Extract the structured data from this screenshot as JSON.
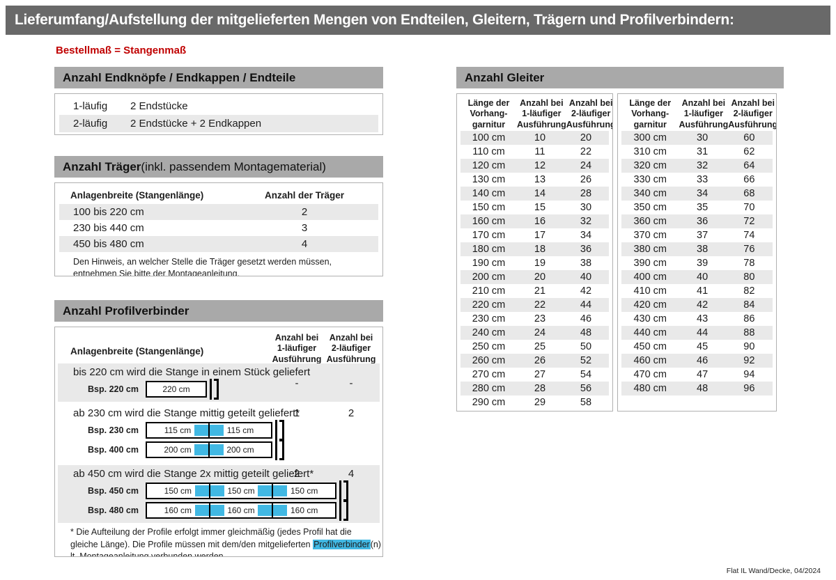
{
  "page": {
    "title": "Lieferumfang/Aufstellung der mitgelieferten Mengen von Endteilen, Gleitern, Trägern und Profilverbindern:",
    "subtitle": "Bestellmaß = Stangenmaß",
    "footer": "Flat IL Wand/Decke, 04/2024"
  },
  "colors": {
    "header_bar": "#696969",
    "section_header": "#a9a9a9",
    "row_stripe": "#e9e9e9",
    "accent_red": "#c00000",
    "connector_blue": "#41b8e3"
  },
  "endteile": {
    "title": "Anzahl Endknöpfe / Endkappen / Endteile",
    "rows": [
      {
        "type": "1-läufig",
        "value": "2 Endstücke"
      },
      {
        "type": "2-läufig",
        "value": "2 Endstücke + 2 Endkappen"
      }
    ]
  },
  "traeger": {
    "title_bold": "Anzahl Träger",
    "title_rest": " (inkl. passendem Montagematerial)",
    "col_width": "Anlagenbreite (Stangenlänge)",
    "col_count": "Anzahl der Träger",
    "rows": [
      {
        "range": "100 bis 220 cm",
        "count": "2"
      },
      {
        "range": "230 bis 440 cm",
        "count": "3"
      },
      {
        "range": "450 bis 480 cm",
        "count": "4"
      }
    ],
    "note": "Den Hinweis, an welcher Stelle die Träger gesetzt werden müssen, entnehmen Sie bitte der Montageanleitung."
  },
  "profilverbinder": {
    "title": "Anzahl Profilverbinder",
    "col_width": "Anlagenbreite (Stangenlänge)",
    "col_1laeufig": "Anzahl bei\n1-läufiger\nAusführung",
    "col_2laeufig": "Anzahl bei\n2-läufiger\nAusführung",
    "blocks": [
      {
        "text": "bis 220 cm wird die Stange in einem Stück geliefert",
        "anzahl_1laeufig": "-",
        "anzahl_2laeufig": "-",
        "examples": [
          {
            "label": "Bsp. 220 cm",
            "segments": [
              "220 cm"
            ]
          }
        ]
      },
      {
        "text": "ab 230 cm wird die Stange mittig geteilt geliefert*",
        "anzahl_1laeufig": "1",
        "anzahl_2laeufig": "2",
        "examples": [
          {
            "label": "Bsp. 230 cm",
            "segments": [
              "115 cm",
              "115 cm"
            ]
          },
          {
            "label": "Bsp. 400 cm",
            "segments": [
              "200 cm",
              "200 cm"
            ]
          }
        ]
      },
      {
        "text": "ab 450 cm wird die Stange 2x mittig geteilt geliefert*",
        "anzahl_1laeufig": "2",
        "anzahl_2laeufig": "4",
        "examples": [
          {
            "label": "Bsp. 450 cm",
            "segments": [
              "150 cm",
              "150 cm",
              "150 cm"
            ]
          },
          {
            "label": "Bsp. 480 cm",
            "segments": [
              "160 cm",
              "160 cm",
              "160 cm"
            ]
          }
        ]
      }
    ],
    "footnote": {
      "before": "* Die Aufteilung der Profile erfolgt immer gleichmäßig (jedes Profil hat die gleiche Länge). Die Profile müssen mit dem/den mitgelieferten ",
      "highlight": "Profilverbinder",
      "after": "(n) lt. Montageanleitung verbunden werden."
    }
  },
  "gleiter": {
    "title": "Anzahl Gleiter",
    "col_laenge": "Länge der\nVorhang-\ngarnitur",
    "col_1laeufig": "Anzahl bei\n1-läufiger\nAusführung",
    "col_2laeufig": "Anzahl bei\n2-läufiger\nAusführung",
    "left_rows": [
      [
        "100 cm",
        "10",
        "20"
      ],
      [
        "110 cm",
        "11",
        "22"
      ],
      [
        "120 cm",
        "12",
        "24"
      ],
      [
        "130 cm",
        "13",
        "26"
      ],
      [
        "140 cm",
        "14",
        "28"
      ],
      [
        "150 cm",
        "15",
        "30"
      ],
      [
        "160 cm",
        "16",
        "32"
      ],
      [
        "170 cm",
        "17",
        "34"
      ],
      [
        "180 cm",
        "18",
        "36"
      ],
      [
        "190 cm",
        "19",
        "38"
      ],
      [
        "200 cm",
        "20",
        "40"
      ],
      [
        "210 cm",
        "21",
        "42"
      ],
      [
        "220 cm",
        "22",
        "44"
      ],
      [
        "230 cm",
        "23",
        "46"
      ],
      [
        "240 cm",
        "24",
        "48"
      ],
      [
        "250 cm",
        "25",
        "50"
      ],
      [
        "260 cm",
        "26",
        "52"
      ],
      [
        "270 cm",
        "27",
        "54"
      ],
      [
        "280 cm",
        "28",
        "56"
      ],
      [
        "290 cm",
        "29",
        "58"
      ]
    ],
    "right_rows": [
      [
        "300 cm",
        "30",
        "60"
      ],
      [
        "310 cm",
        "31",
        "62"
      ],
      [
        "320 cm",
        "32",
        "64"
      ],
      [
        "330 cm",
        "33",
        "66"
      ],
      [
        "340 cm",
        "34",
        "68"
      ],
      [
        "350 cm",
        "35",
        "70"
      ],
      [
        "360 cm",
        "36",
        "72"
      ],
      [
        "370 cm",
        "37",
        "74"
      ],
      [
        "380 cm",
        "38",
        "76"
      ],
      [
        "390 cm",
        "39",
        "78"
      ],
      [
        "400 cm",
        "40",
        "80"
      ],
      [
        "410 cm",
        "41",
        "82"
      ],
      [
        "420 cm",
        "42",
        "84"
      ],
      [
        "430 cm",
        "43",
        "86"
      ],
      [
        "440 cm",
        "44",
        "88"
      ],
      [
        "450 cm",
        "45",
        "90"
      ],
      [
        "460 cm",
        "46",
        "92"
      ],
      [
        "470 cm",
        "47",
        "94"
      ],
      [
        "480 cm",
        "48",
        "96"
      ]
    ]
  }
}
